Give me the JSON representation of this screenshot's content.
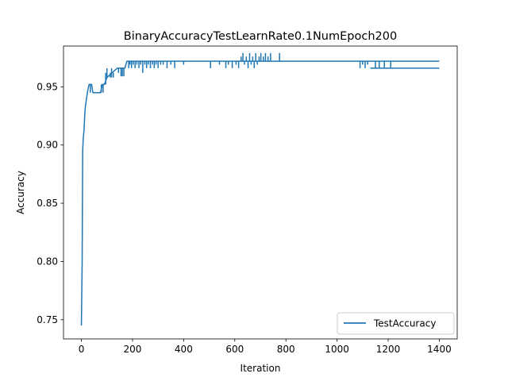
{
  "chart_data": {
    "type": "line",
    "title": "BinaryAccuracyTestLearnRate0.1NumEpoch200",
    "xlabel": "Iteration",
    "ylabel": "Accuracy",
    "xlim": [
      -70,
      1470
    ],
    "ylim": [
      0.7335,
      0.985
    ],
    "xticks": [
      0,
      200,
      400,
      600,
      800,
      1000,
      1200,
      1400
    ],
    "yticks": [
      0.75,
      0.8,
      0.85,
      0.9,
      0.95
    ],
    "ytick_labels": [
      "0.75",
      "0.80",
      "0.85",
      "0.90",
      "0.95"
    ],
    "grid": false,
    "legend_position": "lower-right",
    "series": [
      {
        "name": "TestAccuracy",
        "color": "#1f77b4",
        "base_points": [
          [
            0,
            0.745
          ],
          [
            3,
            0.8
          ],
          [
            5,
            0.895
          ],
          [
            7,
            0.905
          ],
          [
            10,
            0.912
          ],
          [
            13,
            0.925
          ],
          [
            15,
            0.932
          ],
          [
            20,
            0.94
          ],
          [
            25,
            0.947
          ],
          [
            30,
            0.952
          ],
          [
            40,
            0.952
          ],
          [
            45,
            0.945
          ],
          [
            75,
            0.945
          ],
          [
            82,
            0.952
          ],
          [
            90,
            0.952
          ],
          [
            100,
            0.958
          ],
          [
            120,
            0.962
          ],
          [
            140,
            0.966
          ],
          [
            170,
            0.966
          ],
          [
            178,
            0.972
          ],
          [
            1400,
            0.972
          ]
        ],
        "tail_value": 0.966,
        "tail_from": 1130,
        "spikes": [
          {
            "x": 35,
            "v": 0.945
          },
          {
            "x": 60,
            "v": 0.945
          },
          {
            "x": 78,
            "v": 0.952
          },
          {
            "x": 85,
            "v": 0.945
          },
          {
            "x": 95,
            "v": 0.962
          },
          {
            "x": 100,
            "v": 0.966
          },
          {
            "x": 108,
            "v": 0.958
          },
          {
            "x": 113,
            "v": 0.962
          },
          {
            "x": 118,
            "v": 0.966
          },
          {
            "x": 125,
            "v": 0.958
          },
          {
            "x": 132,
            "v": 0.962
          },
          {
            "x": 145,
            "v": 0.962
          },
          {
            "x": 155,
            "v": 0.959
          },
          {
            "x": 160,
            "v": 0.959
          },
          {
            "x": 166,
            "v": 0.959
          },
          {
            "x": 172,
            "v": 0.966
          },
          {
            "x": 185,
            "v": 0.966
          },
          {
            "x": 190,
            "v": 0.969
          },
          {
            "x": 196,
            "v": 0.966
          },
          {
            "x": 203,
            "v": 0.969
          },
          {
            "x": 210,
            "v": 0.966
          },
          {
            "x": 217,
            "v": 0.969
          },
          {
            "x": 225,
            "v": 0.966
          },
          {
            "x": 232,
            "v": 0.969
          },
          {
            "x": 240,
            "v": 0.962
          },
          {
            "x": 248,
            "v": 0.969
          },
          {
            "x": 255,
            "v": 0.966
          },
          {
            "x": 262,
            "v": 0.969
          },
          {
            "x": 270,
            "v": 0.966
          },
          {
            "x": 278,
            "v": 0.969
          },
          {
            "x": 285,
            "v": 0.966
          },
          {
            "x": 292,
            "v": 0.969
          },
          {
            "x": 300,
            "v": 0.966
          },
          {
            "x": 310,
            "v": 0.969
          },
          {
            "x": 320,
            "v": 0.969
          },
          {
            "x": 335,
            "v": 0.966
          },
          {
            "x": 350,
            "v": 0.969
          },
          {
            "x": 365,
            "v": 0.966
          },
          {
            "x": 400,
            "v": 0.969
          },
          {
            "x": 505,
            "v": 0.966
          },
          {
            "x": 540,
            "v": 0.969
          },
          {
            "x": 565,
            "v": 0.966
          },
          {
            "x": 575,
            "v": 0.969
          },
          {
            "x": 590,
            "v": 0.966
          },
          {
            "x": 605,
            "v": 0.969
          },
          {
            "x": 615,
            "v": 0.966
          },
          {
            "x": 625,
            "v": 0.976
          },
          {
            "x": 632,
            "v": 0.979
          },
          {
            "x": 638,
            "v": 0.969
          },
          {
            "x": 645,
            "v": 0.976
          },
          {
            "x": 652,
            "v": 0.966
          },
          {
            "x": 658,
            "v": 0.979
          },
          {
            "x": 664,
            "v": 0.969
          },
          {
            "x": 670,
            "v": 0.976
          },
          {
            "x": 676,
            "v": 0.966
          },
          {
            "x": 682,
            "v": 0.979
          },
          {
            "x": 688,
            "v": 0.969
          },
          {
            "x": 695,
            "v": 0.976
          },
          {
            "x": 702,
            "v": 0.979
          },
          {
            "x": 712,
            "v": 0.976
          },
          {
            "x": 720,
            "v": 0.979
          },
          {
            "x": 730,
            "v": 0.976
          },
          {
            "x": 740,
            "v": 0.979
          },
          {
            "x": 775,
            "v": 0.979
          },
          {
            "x": 1090,
            "v": 0.966
          },
          {
            "x": 1100,
            "v": 0.969
          },
          {
            "x": 1110,
            "v": 0.966
          },
          {
            "x": 1120,
            "v": 0.969
          },
          {
            "x": 1150,
            "v": 0.972
          },
          {
            "x": 1165,
            "v": 0.972
          },
          {
            "x": 1185,
            "v": 0.972
          },
          {
            "x": 1210,
            "v": 0.972
          }
        ]
      }
    ]
  }
}
